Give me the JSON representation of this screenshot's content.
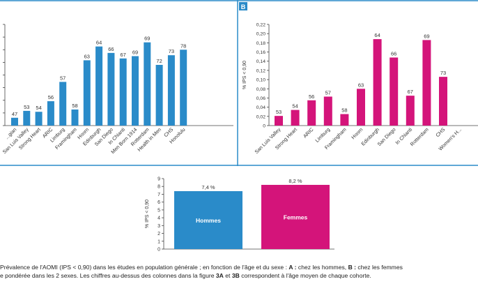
{
  "colors": {
    "frame": "#2a8bc9",
    "blue": "#2a8bc9",
    "magenta": "#d4147a"
  },
  "chart_data": [
    {
      "id": "chart-A",
      "type": "bar",
      "categories": [
        "...gian",
        "San Luis Valley",
        "Strong Heart",
        "ARIC",
        "Limburg",
        "Framingham",
        "Hoorn",
        "Edinburgh",
        "San Diego",
        "In Chianti",
        "Men Born 1914",
        "Rotterdam",
        "Health in Men",
        "CHS",
        "Honolulu"
      ],
      "values": [
        0.017,
        0.032,
        0.03,
        0.053,
        0.095,
        0.035,
        0.142,
        0.172,
        0.158,
        0.146,
        0.151,
        0.181,
        0.132,
        0.153,
        0.165
      ],
      "labels": [
        "47",
        "53",
        "54",
        "56",
        "57",
        "58",
        "63",
        "64",
        "66",
        "67",
        "69",
        "69",
        "72",
        "73",
        "78"
      ],
      "ylim": [
        0,
        0.22
      ],
      "color": "#2a8bc9"
    },
    {
      "id": "chart-B",
      "type": "bar",
      "panel_label": "B",
      "ylabel": "% IPS < 0,90",
      "yticks": [
        "0",
        "0,02",
        "0,04",
        "0,06",
        "0,08",
        "0,10",
        "0,12",
        "0,14",
        "0,16",
        "0,18",
        "0,20",
        "0,22"
      ],
      "categories": [
        "San Luis Valley",
        "Strong Heart",
        "ARIC",
        "Limburg",
        "Framingham",
        "Hoorn",
        "Edinburgh",
        "San Diego",
        "In Chianti",
        "Rotterdam",
        "CHS",
        "Women's H..."
      ],
      "values": [
        0.021,
        0.034,
        0.055,
        0.063,
        0.025,
        0.08,
        0.188,
        0.148,
        0.065,
        0.186,
        0.106,
        0.0
      ],
      "labels": [
        "53",
        "54",
        "56",
        "57",
        "58",
        "63",
        "64",
        "66",
        "67",
        "69",
        "73",
        ""
      ],
      "ylim": [
        0,
        0.22
      ],
      "color": "#d4147a"
    },
    {
      "id": "chart-C",
      "type": "bar",
      "ylabel": "% IPS < 0,90",
      "yticks": [
        "0",
        "1",
        "2",
        "3",
        "4",
        "5",
        "6",
        "7",
        "8",
        "9"
      ],
      "categories": [
        "Hommes",
        "Femmes"
      ],
      "values": [
        7.4,
        8.2
      ],
      "labels": [
        "7,4 %",
        "8,2 %"
      ],
      "ylim": [
        0,
        9
      ],
      "colors": [
        "#2a8bc9",
        "#d4147a"
      ]
    }
  ],
  "caption": {
    "line1_parts": [
      "Prévalence de l'AOMI (IPS < 0,90) dans les études en population générale ; en fonction de l'âge et du sexe : ",
      "A :",
      " chez les hommes, ",
      "B :",
      " chez les femmes"
    ],
    "line2_parts": [
      "e pondérée dans les 2 sexes. Les chiffres au-dessus des colonnes dans la figure ",
      "3A",
      " et ",
      "3B",
      " correspondent à l'âge moyen de chaque cohorte."
    ]
  }
}
